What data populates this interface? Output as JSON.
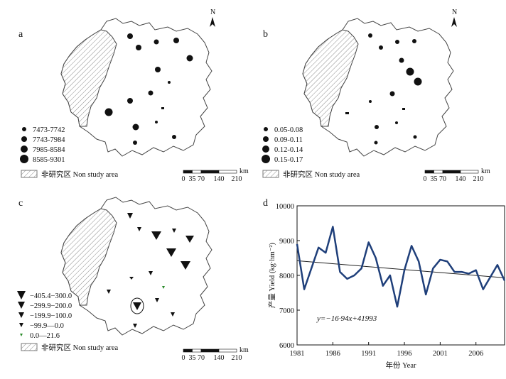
{
  "panels": [
    {
      "letter": "a",
      "legend": [
        {
          "label": "7473-7742",
          "size": 2
        },
        {
          "label": "7743-7984",
          "size": 3
        },
        {
          "label": "7985-8584",
          "size": 4
        },
        {
          "label": "8585-9301",
          "size": 5
        }
      ],
      "non_study_label": "非研究区 Non study area"
    },
    {
      "letter": "b",
      "legend": [
        {
          "label": "0.05-0.08",
          "size": 2
        },
        {
          "label": "0.09-0.11",
          "size": 3
        },
        {
          "label": "0.12-0.14",
          "size": 4
        },
        {
          "label": "0.15-0.17",
          "size": 5
        }
      ],
      "non_study_label": "非研究区 Non study area"
    },
    {
      "letter": "c",
      "legend": [
        {
          "label": "−405.4−300.0",
          "size": 5
        },
        {
          "label": "−299.9−200.0",
          "size": 4
        },
        {
          "label": "−199.9−100.0",
          "size": 3
        },
        {
          "label": "−99.9—0.0",
          "size": 2
        },
        {
          "label": "0.0—21.6",
          "size": 1
        }
      ],
      "non_study_label": "非研究区 Non study area"
    }
  ],
  "north_label": "N",
  "scale_bar": {
    "labels": [
      "0",
      "35",
      "70",
      "140",
      "210"
    ],
    "unit": "km"
  },
  "chart_data": {
    "type": "line",
    "panel_letter": "d",
    "ylabel": "产量 Yield (kg·hm⁻²)",
    "xlabel": "年份 Year",
    "ylim": [
      6000,
      10000
    ],
    "yticks": [
      6000,
      7000,
      8000,
      9000,
      10000
    ],
    "xlim": [
      1981,
      2010
    ],
    "xticks": [
      1981,
      1986,
      1991,
      1996,
      2001,
      2006
    ],
    "series": [
      {
        "x": [
          1981,
          1982,
          1983,
          1984,
          1985,
          1986,
          1987,
          1988,
          1989,
          1990,
          1991,
          1992,
          1993,
          1994,
          1995,
          1996,
          1997,
          1998,
          1999,
          2000,
          2001,
          2002,
          2003,
          2004,
          2005,
          2006,
          2007,
          2008,
          2009,
          2010
        ],
        "values": [
          8900,
          7600,
          8200,
          8800,
          8650,
          9400,
          8100,
          7900,
          8000,
          8200,
          8950,
          8500,
          7700,
          8000,
          7100,
          8150,
          8850,
          8400,
          7450,
          8200,
          8450,
          8400,
          8100,
          8100,
          8050,
          8150,
          7600,
          7950,
          8300,
          7850
        ],
        "color": "#1f3f7a"
      }
    ],
    "trendline": {
      "start": [
        1981,
        8420
      ],
      "end": [
        2010,
        7930
      ],
      "color": "#222222"
    },
    "equation": "y=−16·94x+41993"
  }
}
